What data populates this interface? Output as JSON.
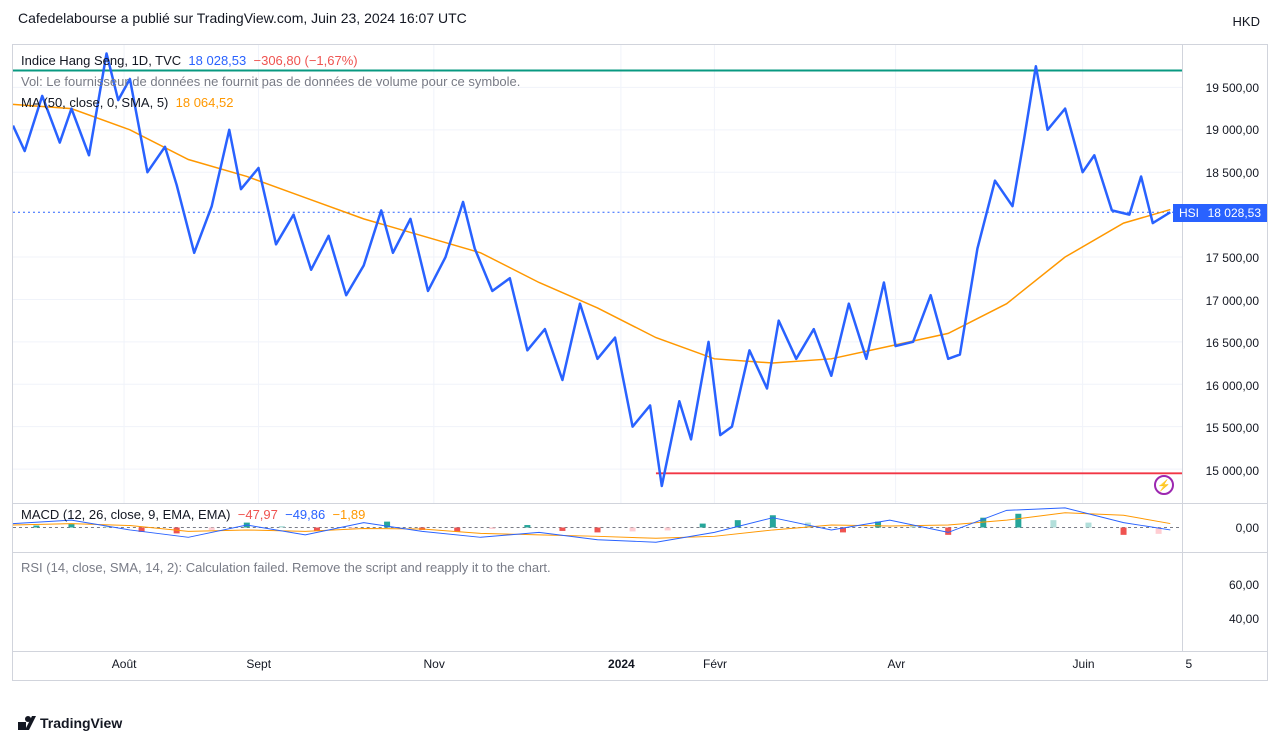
{
  "header": {
    "text": "Cafedelabourse a publié sur TradingView.com, Juin 23, 2024 16:07 UTC"
  },
  "currency": "HKD",
  "footer": {
    "brand": "TradingView"
  },
  "main": {
    "legend": {
      "symbol": "Indice Hang Seng, 1D, TVC",
      "last": "18 028,53",
      "change": "−306,80",
      "pct": "(−1,67%)",
      "vol_text": "Vol: Le fournisseur de données ne fournit pas de données de volume pour ce symbole.",
      "ma_label": "MA (50, close, 0, SMA, 5)",
      "ma_value": "18 064,52"
    },
    "ylim": [
      14600,
      20000
    ],
    "yticks": [
      "19 500,00",
      "19 000,00",
      "18 500,00",
      "18 028,53",
      "17 500,00",
      "17 000,00",
      "16 500,00",
      "16 000,00",
      "15 500,00",
      "15 000,00"
    ],
    "ytick_vals": [
      19500,
      19000,
      18500,
      18028.53,
      17500,
      17000,
      16500,
      16000,
      15500,
      15000
    ],
    "current": 18028.53,
    "hsi_tag": "HSI",
    "green_line_y": 19700,
    "red_line_y": 14950,
    "red_line_xstart": 0.55,
    "colors": {
      "price": "#2962ff",
      "ma": "#ff9800",
      "green": "#089981",
      "red": "#f23645",
      "grid": "#f0f3fa",
      "flash": "#9c27b0"
    },
    "price_series": [
      [
        0,
        19050
      ],
      [
        0.01,
        18750
      ],
      [
        0.025,
        19400
      ],
      [
        0.04,
        18850
      ],
      [
        0.05,
        19250
      ],
      [
        0.065,
        18700
      ],
      [
        0.08,
        19900
      ],
      [
        0.09,
        19350
      ],
      [
        0.1,
        19600
      ],
      [
        0.115,
        18500
      ],
      [
        0.13,
        18800
      ],
      [
        0.14,
        18350
      ],
      [
        0.155,
        17550
      ],
      [
        0.17,
        18100
      ],
      [
        0.185,
        19000
      ],
      [
        0.195,
        18300
      ],
      [
        0.21,
        18550
      ],
      [
        0.225,
        17650
      ],
      [
        0.24,
        18000
      ],
      [
        0.255,
        17350
      ],
      [
        0.27,
        17750
      ],
      [
        0.285,
        17050
      ],
      [
        0.3,
        17400
      ],
      [
        0.315,
        18050
      ],
      [
        0.325,
        17550
      ],
      [
        0.34,
        17950
      ],
      [
        0.355,
        17100
      ],
      [
        0.37,
        17500
      ],
      [
        0.385,
        18150
      ],
      [
        0.395,
        17600
      ],
      [
        0.41,
        17100
      ],
      [
        0.425,
        17250
      ],
      [
        0.44,
        16400
      ],
      [
        0.455,
        16650
      ],
      [
        0.47,
        16050
      ],
      [
        0.485,
        16950
      ],
      [
        0.5,
        16300
      ],
      [
        0.515,
        16550
      ],
      [
        0.53,
        15500
      ],
      [
        0.545,
        15750
      ],
      [
        0.555,
        14800
      ],
      [
        0.57,
        15800
      ],
      [
        0.58,
        15350
      ],
      [
        0.595,
        16500
      ],
      [
        0.605,
        15400
      ],
      [
        0.615,
        15500
      ],
      [
        0.63,
        16400
      ],
      [
        0.645,
        15950
      ],
      [
        0.655,
        16750
      ],
      [
        0.67,
        16300
      ],
      [
        0.685,
        16650
      ],
      [
        0.7,
        16100
      ],
      [
        0.715,
        16950
      ],
      [
        0.73,
        16300
      ],
      [
        0.745,
        17200
      ],
      [
        0.755,
        16450
      ],
      [
        0.77,
        16500
      ],
      [
        0.785,
        17050
      ],
      [
        0.8,
        16300
      ],
      [
        0.81,
        16350
      ],
      [
        0.825,
        17600
      ],
      [
        0.84,
        18400
      ],
      [
        0.855,
        18100
      ],
      [
        0.865,
        18900
      ],
      [
        0.875,
        19750
      ],
      [
        0.885,
        19000
      ],
      [
        0.9,
        19250
      ],
      [
        0.915,
        18500
      ],
      [
        0.925,
        18700
      ],
      [
        0.94,
        18050
      ],
      [
        0.955,
        18000
      ],
      [
        0.965,
        18450
      ],
      [
        0.975,
        17900
      ],
      [
        0.99,
        18028
      ]
    ],
    "ma_series": [
      [
        0,
        19300
      ],
      [
        0.05,
        19250
      ],
      [
        0.1,
        19000
      ],
      [
        0.15,
        18650
      ],
      [
        0.2,
        18450
      ],
      [
        0.25,
        18200
      ],
      [
        0.3,
        17950
      ],
      [
        0.35,
        17750
      ],
      [
        0.4,
        17550
      ],
      [
        0.45,
        17200
      ],
      [
        0.5,
        16900
      ],
      [
        0.55,
        16550
      ],
      [
        0.6,
        16300
      ],
      [
        0.65,
        16250
      ],
      [
        0.7,
        16300
      ],
      [
        0.75,
        16450
      ],
      [
        0.8,
        16600
      ],
      [
        0.85,
        16950
      ],
      [
        0.9,
        17500
      ],
      [
        0.95,
        17900
      ],
      [
        0.99,
        18060
      ]
    ]
  },
  "macd": {
    "legend": {
      "label": "MACD (12, 26, close, 9, EMA, EMA)",
      "v1": "−47,97",
      "v2": "−49,86",
      "v3": "−1,89"
    },
    "ylim": [
      -500,
      500
    ],
    "ytick": "0,00",
    "macd_line": [
      [
        0,
        80
      ],
      [
        0.05,
        150
      ],
      [
        0.1,
        -50
      ],
      [
        0.15,
        -200
      ],
      [
        0.2,
        50
      ],
      [
        0.25,
        -150
      ],
      [
        0.3,
        100
      ],
      [
        0.35,
        -80
      ],
      [
        0.4,
        -200
      ],
      [
        0.45,
        -100
      ],
      [
        0.5,
        -250
      ],
      [
        0.55,
        -300
      ],
      [
        0.6,
        -100
      ],
      [
        0.65,
        200
      ],
      [
        0.7,
        -50
      ],
      [
        0.75,
        150
      ],
      [
        0.8,
        -100
      ],
      [
        0.85,
        350
      ],
      [
        0.9,
        400
      ],
      [
        0.95,
        100
      ],
      [
        0.99,
        -50
      ]
    ],
    "signal_line": [
      [
        0,
        50
      ],
      [
        0.05,
        80
      ],
      [
        0.1,
        40
      ],
      [
        0.15,
        -80
      ],
      [
        0.2,
        -50
      ],
      [
        0.25,
        -80
      ],
      [
        0.3,
        -20
      ],
      [
        0.35,
        -30
      ],
      [
        0.4,
        -120
      ],
      [
        0.45,
        -150
      ],
      [
        0.5,
        -180
      ],
      [
        0.55,
        -220
      ],
      [
        0.6,
        -180
      ],
      [
        0.65,
        -50
      ],
      [
        0.7,
        50
      ],
      [
        0.75,
        30
      ],
      [
        0.8,
        50
      ],
      [
        0.85,
        150
      ],
      [
        0.9,
        300
      ],
      [
        0.95,
        250
      ],
      [
        0.99,
        80
      ]
    ],
    "histogram": [
      [
        0.02,
        40,
        "#26a69a"
      ],
      [
        0.05,
        70,
        "#26a69a"
      ],
      [
        0.08,
        20,
        "#b2dfdb"
      ],
      [
        0.11,
        -90,
        "#ef5350"
      ],
      [
        0.14,
        -120,
        "#ef5350"
      ],
      [
        0.17,
        -50,
        "#ffcdd2"
      ],
      [
        0.2,
        100,
        "#26a69a"
      ],
      [
        0.23,
        30,
        "#b2dfdb"
      ],
      [
        0.26,
        -70,
        "#ef5350"
      ],
      [
        0.29,
        -20,
        "#ffcdd2"
      ],
      [
        0.32,
        120,
        "#26a69a"
      ],
      [
        0.35,
        -50,
        "#ef5350"
      ],
      [
        0.38,
        -80,
        "#ef5350"
      ],
      [
        0.41,
        -30,
        "#ffcdd2"
      ],
      [
        0.44,
        50,
        "#26a69a"
      ],
      [
        0.47,
        -70,
        "#ef5350"
      ],
      [
        0.5,
        -100,
        "#ef5350"
      ],
      [
        0.53,
        -80,
        "#ffcdd2"
      ],
      [
        0.56,
        -60,
        "#ffcdd2"
      ],
      [
        0.59,
        80,
        "#26a69a"
      ],
      [
        0.62,
        150,
        "#26a69a"
      ],
      [
        0.65,
        250,
        "#26a69a"
      ],
      [
        0.68,
        100,
        "#b2dfdb"
      ],
      [
        0.71,
        -100,
        "#ef5350"
      ],
      [
        0.74,
        120,
        "#26a69a"
      ],
      [
        0.77,
        50,
        "#b2dfdb"
      ],
      [
        0.8,
        -150,
        "#ef5350"
      ],
      [
        0.83,
        200,
        "#26a69a"
      ],
      [
        0.86,
        280,
        "#26a69a"
      ],
      [
        0.89,
        150,
        "#b2dfdb"
      ],
      [
        0.92,
        100,
        "#b2dfdb"
      ],
      [
        0.95,
        -150,
        "#ef5350"
      ],
      [
        0.98,
        -130,
        "#ffcdd2"
      ]
    ]
  },
  "rsi": {
    "legend": {
      "text": "RSI (14, close, SMA, 14, 2): Calculation failed. Remove the script and reapply it to the chart."
    },
    "yticks": [
      "60,00",
      "40,00"
    ],
    "ytick_vals": [
      60,
      40
    ],
    "ylim": [
      20,
      80
    ]
  },
  "xaxis": {
    "ticks": [
      {
        "x": 0.095,
        "label": "Août",
        "bold": false
      },
      {
        "x": 0.21,
        "label": "Sept",
        "bold": false
      },
      {
        "x": 0.36,
        "label": "Nov",
        "bold": false
      },
      {
        "x": 0.52,
        "label": "2024",
        "bold": true
      },
      {
        "x": 0.6,
        "label": "Févr",
        "bold": false
      },
      {
        "x": 0.755,
        "label": "Avr",
        "bold": false
      },
      {
        "x": 0.915,
        "label": "Juin",
        "bold": false
      },
      {
        "x": 1.005,
        "label": "5",
        "bold": false
      }
    ]
  }
}
